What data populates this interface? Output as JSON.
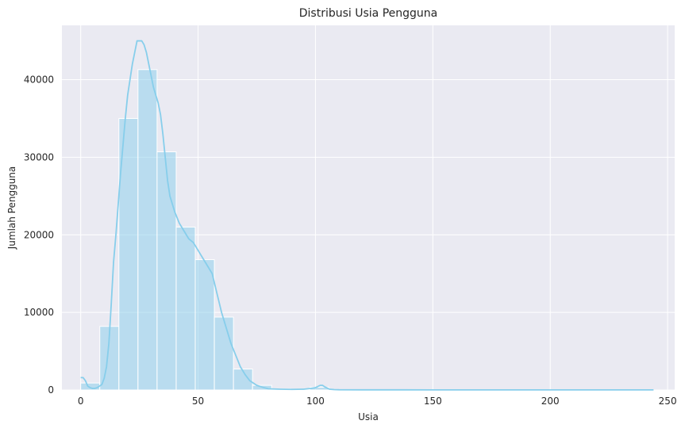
{
  "chart_data": {
    "type": "bar",
    "title": "Distribusi Usia Pengguna",
    "xlabel": "Usia",
    "ylabel": "Jumlah Pengguna",
    "xlim": [
      -8,
      253
    ],
    "ylim": [
      0,
      47000
    ],
    "x_ticks": [
      0,
      50,
      100,
      150,
      200,
      250
    ],
    "y_ticks": [
      0,
      10000,
      20000,
      30000,
      40000
    ],
    "grid": true,
    "bin_width": 8.13,
    "bins": [
      {
        "x0": 0.0,
        "x1": 8.13,
        "count": 900
      },
      {
        "x0": 8.13,
        "x1": 16.27,
        "count": 8200
      },
      {
        "x0": 16.27,
        "x1": 24.4,
        "count": 35000
      },
      {
        "x0": 24.4,
        "x1": 32.53,
        "count": 41300
      },
      {
        "x0": 32.53,
        "x1": 40.67,
        "count": 30700
      },
      {
        "x0": 40.67,
        "x1": 48.8,
        "count": 21000
      },
      {
        "x0": 48.8,
        "x1": 56.93,
        "count": 16800
      },
      {
        "x0": 56.93,
        "x1": 65.07,
        "count": 9400
      },
      {
        "x0": 65.07,
        "x1": 73.2,
        "count": 2700
      },
      {
        "x0": 73.2,
        "x1": 81.33,
        "count": 600
      },
      {
        "x0": 81.33,
        "x1": 89.47,
        "count": 150
      },
      {
        "x0": 89.47,
        "x1": 97.6,
        "count": 80
      },
      {
        "x0": 97.6,
        "x1": 105.73,
        "count": 350
      },
      {
        "x0": 105.73,
        "x1": 113.87,
        "count": 30
      },
      {
        "x0": 113.87,
        "x1": 122.0,
        "count": 20
      },
      {
        "x0": 122.0,
        "x1": 130.13,
        "count": 10
      },
      {
        "x0": 130.13,
        "x1": 138.27,
        "count": 10
      },
      {
        "x0": 138.27,
        "x1": 146.4,
        "count": 5
      },
      {
        "x0": 146.4,
        "x1": 154.53,
        "count": 5
      },
      {
        "x0": 154.53,
        "x1": 162.67,
        "count": 5
      },
      {
        "x0": 162.67,
        "x1": 170.8,
        "count": 5
      },
      {
        "x0": 170.8,
        "x1": 178.93,
        "count": 5
      },
      {
        "x0": 178.93,
        "x1": 187.07,
        "count": 5
      },
      {
        "x0": 187.07,
        "x1": 195.2,
        "count": 5
      },
      {
        "x0": 195.2,
        "x1": 203.33,
        "count": 5
      },
      {
        "x0": 203.33,
        "x1": 211.47,
        "count": 5
      },
      {
        "x0": 211.47,
        "x1": 219.6,
        "count": 5
      },
      {
        "x0": 219.6,
        "x1": 227.73,
        "count": 5
      },
      {
        "x0": 227.73,
        "x1": 235.87,
        "count": 5
      },
      {
        "x0": 235.87,
        "x1": 244.0,
        "count": 5
      }
    ],
    "kde": {
      "x": [
        0,
        1,
        2,
        3,
        4,
        5,
        6,
        7,
        8,
        9,
        10,
        11,
        12,
        13,
        14,
        15,
        16,
        17,
        18,
        19,
        20,
        21,
        22,
        23,
        24,
        25,
        26,
        27,
        28,
        29,
        30,
        31,
        32,
        33,
        34,
        35,
        36,
        37,
        38,
        40,
        42,
        44,
        46,
        48,
        50,
        52,
        54,
        56,
        58,
        60,
        62,
        64,
        66,
        68,
        70,
        72,
        75,
        78,
        80,
        85,
        90,
        95,
        98,
        100,
        102,
        103,
        104,
        106,
        108,
        110,
        120,
        150,
        200,
        244
      ],
      "y": [
        1600,
        1600,
        1200,
        500,
        300,
        200,
        200,
        300,
        500,
        700,
        1500,
        3000,
        6000,
        11000,
        16500,
        20000,
        24000,
        28000,
        31500,
        35000,
        38000,
        40000,
        42000,
        43500,
        45000,
        45000,
        45000,
        44500,
        43500,
        42000,
        40500,
        39000,
        38000,
        37000,
        35500,
        33000,
        30000,
        27000,
        25000,
        23000,
        21500,
        20500,
        19500,
        19000,
        18000,
        17000,
        16000,
        15000,
        12500,
        10000,
        8000,
        6000,
        4500,
        3000,
        2000,
        1200,
        600,
        300,
        150,
        100,
        80,
        100,
        200,
        300,
        600,
        600,
        400,
        100,
        50,
        30,
        20,
        15,
        15,
        10
      ]
    },
    "colors": {
      "bar_fill": "#87ceeb",
      "kde_line": "#87ceeb",
      "plot_background": "#eaeaf2",
      "grid": "#ffffff"
    }
  }
}
